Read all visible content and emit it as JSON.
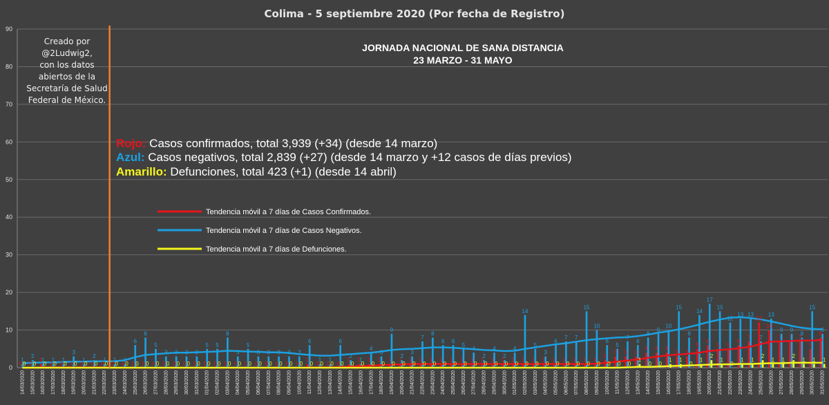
{
  "chart_data": {
    "type": "bar",
    "title": "Colima - 5 septiembre 2020 (Por fecha de Registro)",
    "xlabel": "",
    "ylabel": "",
    "ylim": [
      0,
      90
    ],
    "yticks": [
      0,
      10,
      20,
      30,
      40,
      50,
      60,
      70,
      80,
      90
    ],
    "grid": true,
    "categories": [
      "14/03/2020",
      "15/03/2020",
      "16/03/2020",
      "17/03/2020",
      "18/03/2020",
      "19/03/2020",
      "20/03/2020",
      "21/03/2020",
      "22/03/2020",
      "23/03/2020",
      "24/03/2020",
      "25/03/2020",
      "26/03/2020",
      "27/03/2020",
      "28/03/2020",
      "29/03/2020",
      "30/03/2020",
      "31/03/2020",
      "01/04/2020",
      "02/04/2020",
      "03/04/2020",
      "04/04/2020",
      "05/04/2020",
      "06/04/2020",
      "07/04/2020",
      "08/04/2020",
      "09/04/2020",
      "10/04/2020",
      "11/04/2020",
      "12/04/2020",
      "13/04/2020",
      "14/04/2020",
      "15/04/2020",
      "16/04/2020",
      "17/04/2020",
      "18/04/2020",
      "19/04/2020",
      "20/04/2020",
      "21/04/2020",
      "22/04/2020",
      "23/04/2020",
      "24/04/2020",
      "25/04/2020",
      "26/04/2020",
      "27/04/2020",
      "28/04/2020",
      "29/04/2020",
      "30/04/2020",
      "01/05/2020",
      "02/05/2020",
      "03/05/2020",
      "04/05/2020",
      "05/05/2020",
      "06/05/2020",
      "07/05/2020",
      "08/05/2020",
      "09/05/2020",
      "10/05/2020",
      "11/05/2020",
      "12/05/2020",
      "13/05/2020",
      "14/05/2020",
      "15/05/2020",
      "16/05/2020",
      "17/05/2020",
      "18/05/2020",
      "19/05/2020",
      "20/05/2020",
      "21/05/2020",
      "22/05/2020",
      "23/05/2020",
      "24/05/2020",
      "25/05/2020",
      "26/05/2020",
      "27/05/2020",
      "28/05/2020",
      "29/05/2020",
      "30/05/2020",
      "31/05/2020"
    ],
    "series": [
      {
        "name": "Casos confirmados",
        "color": "#e8141b",
        "values": [
          0,
          0,
          1,
          0,
          0,
          0,
          0,
          0,
          0,
          0,
          0,
          0,
          0,
          0,
          0,
          0,
          0,
          0,
          0,
          0,
          0,
          0,
          0,
          0,
          0,
          0,
          0,
          0,
          1,
          0,
          0,
          0,
          1,
          1,
          1,
          1,
          1,
          1,
          1,
          1,
          1,
          1,
          1,
          1,
          1,
          1,
          1,
          1,
          1,
          1,
          1,
          1,
          1,
          1,
          1,
          1,
          1,
          2,
          3,
          3,
          3,
          4,
          4,
          4,
          3,
          3,
          5,
          6,
          5,
          5,
          6,
          7,
          12,
          10,
          7,
          7,
          7,
          5,
          8
        ]
      },
      {
        "name": "Casos negativos",
        "color": "#1ba1e2",
        "values": [
          1,
          2,
          1,
          1,
          1,
          3,
          1,
          2,
          1,
          1,
          1,
          6,
          8,
          5,
          3,
          3,
          3,
          3,
          5,
          5,
          8,
          3,
          5,
          3,
          3,
          3,
          3,
          3,
          6,
          1,
          1,
          6,
          2,
          1,
          4,
          3,
          9,
          2,
          3,
          7,
          8,
          6,
          6,
          5,
          4,
          2,
          4,
          2,
          4,
          14,
          5,
          3,
          6,
          7,
          7,
          15,
          10,
          6,
          5,
          7,
          6,
          8,
          9,
          10,
          15,
          8,
          14,
          17,
          15,
          12,
          13,
          13,
          7,
          13,
          9,
          9,
          8,
          15,
          9
        ]
      },
      {
        "name": "Defunciones",
        "color": "#f5f51e",
        "values": [
          0,
          0,
          0,
          0,
          0,
          0,
          0,
          0,
          0,
          0,
          0,
          0,
          0,
          0,
          0,
          0,
          0,
          0,
          0,
          0,
          0,
          0,
          0,
          0,
          0,
          0,
          0,
          0,
          0,
          0,
          0,
          0,
          0,
          0,
          0,
          0,
          0,
          0,
          0,
          0,
          0,
          0,
          0,
          0,
          0,
          0,
          0,
          0,
          0,
          0,
          0,
          0,
          0,
          0,
          0,
          0,
          0,
          0,
          0,
          0,
          1,
          0,
          0,
          1,
          1,
          0,
          1,
          2,
          1,
          0,
          1,
          1,
          2,
          1,
          1,
          2,
          1,
          1,
          1
        ]
      },
      {
        "name": "Tendencia móvil a 7 días de Casos Confirmados.",
        "color": "#e8141b",
        "line": true,
        "values": [
          0,
          0,
          0.1,
          0.1,
          0.1,
          0.1,
          0.1,
          0.1,
          0.1,
          0,
          0,
          0,
          0,
          0,
          0,
          0,
          0,
          0,
          0,
          0,
          0,
          0,
          0,
          0,
          0,
          0,
          0,
          0,
          0.1,
          0.1,
          0.1,
          0.2,
          0.3,
          0.4,
          0.5,
          0.7,
          0.8,
          0.9,
          1,
          1,
          1,
          1,
          1,
          1,
          1,
          1,
          1,
          1,
          1,
          1,
          1,
          1,
          1,
          1,
          1,
          1,
          1.1,
          1.3,
          1.6,
          1.9,
          2.2,
          2.6,
          3,
          3.3,
          3.5,
          3.7,
          4,
          4.4,
          4.7,
          4.9,
          5.2,
          5.6,
          6.3,
          6.9,
          7,
          7.1,
          7.2,
          7.2,
          7.4
        ]
      },
      {
        "name": "Tendencia móvil a 7 días de Casos Negativos.",
        "color": "#1ba1e2",
        "line": true,
        "values": [
          1.2,
          1.3,
          1.4,
          1.4,
          1.5,
          1.6,
          1.6,
          1.7,
          1.7,
          1.7,
          2,
          2.8,
          3.4,
          3.6,
          3.8,
          4,
          4,
          4.1,
          4.2,
          4.3,
          4.5,
          4.4,
          4.3,
          4.2,
          4.1,
          4.1,
          3.9,
          3.6,
          3.4,
          3.2,
          3.2,
          3.4,
          3.6,
          3.8,
          4,
          4.3,
          4.7,
          4.9,
          5,
          5.2,
          5.4,
          5.4,
          5.3,
          5.1,
          4.9,
          4.7,
          4.6,
          4.4,
          4.5,
          5,
          5.4,
          5.8,
          6.2,
          6.5,
          6.9,
          7.3,
          7.6,
          7.8,
          8,
          8.1,
          8.4,
          8.8,
          9.3,
          9.7,
          10.2,
          10.8,
          11.5,
          12.2,
          12.8,
          13.3,
          13.4,
          13.2,
          12.8,
          12.3,
          11.7,
          11.1,
          10.6,
          10.3,
          10.2
        ]
      },
      {
        "name": "Tendencia móvil a 7 días de Defunciones.",
        "color": "#f5f51e",
        "line": true,
        "values": [
          0,
          0,
          0,
          0,
          0,
          0,
          0,
          0,
          0,
          0,
          0,
          0,
          0,
          0,
          0,
          0,
          0,
          0,
          0,
          0,
          0,
          0,
          0,
          0,
          0,
          0,
          0,
          0,
          0,
          0,
          0,
          0,
          0,
          0,
          0,
          0,
          0,
          0,
          0,
          0,
          0,
          0,
          0,
          0,
          0,
          0,
          0,
          0,
          0,
          0,
          0,
          0,
          0,
          0,
          0,
          0,
          0,
          0,
          0,
          0.1,
          0.2,
          0.2,
          0.3,
          0.4,
          0.5,
          0.6,
          0.7,
          0.8,
          0.9,
          0.9,
          1,
          1,
          1.1,
          1.2,
          1.2,
          1.3,
          1.3,
          1.3,
          1.3
        ]
      }
    ],
    "vline": {
      "date": "23/03/2020",
      "color": "#f08030"
    },
    "annotations": {
      "credit": [
        "Creado por",
        "@2Ludwig2,",
        "con los datos",
        "abiertos de la",
        "Secretaría de Salud",
        "Federal de México."
      ],
      "jornada_line1": "JORNADA NACIONAL DE SANA DISTANCIA",
      "jornada_line2": "23 MARZO - 31 MAYO",
      "rojo_key": "Rojo:",
      "rojo_text": " Casos confirmados, total 3,939 (+34) (desde 14 marzo)",
      "azul_key": "Azul:",
      "azul_text": " Casos negativos, total 2,839 (+27) (desde 14 marzo y +12 casos de días previos)",
      "amarillo_key": "Amarillo:",
      "amarillo_text": " Defunciones, total 423 (+1) (desde 14 abril)"
    },
    "colors": {
      "background": "#404040",
      "grid": "#6a6a6a",
      "red": "#e8141b",
      "blue": "#1ba1e2",
      "yellow": "#f5f51e",
      "orange": "#f08030"
    }
  }
}
